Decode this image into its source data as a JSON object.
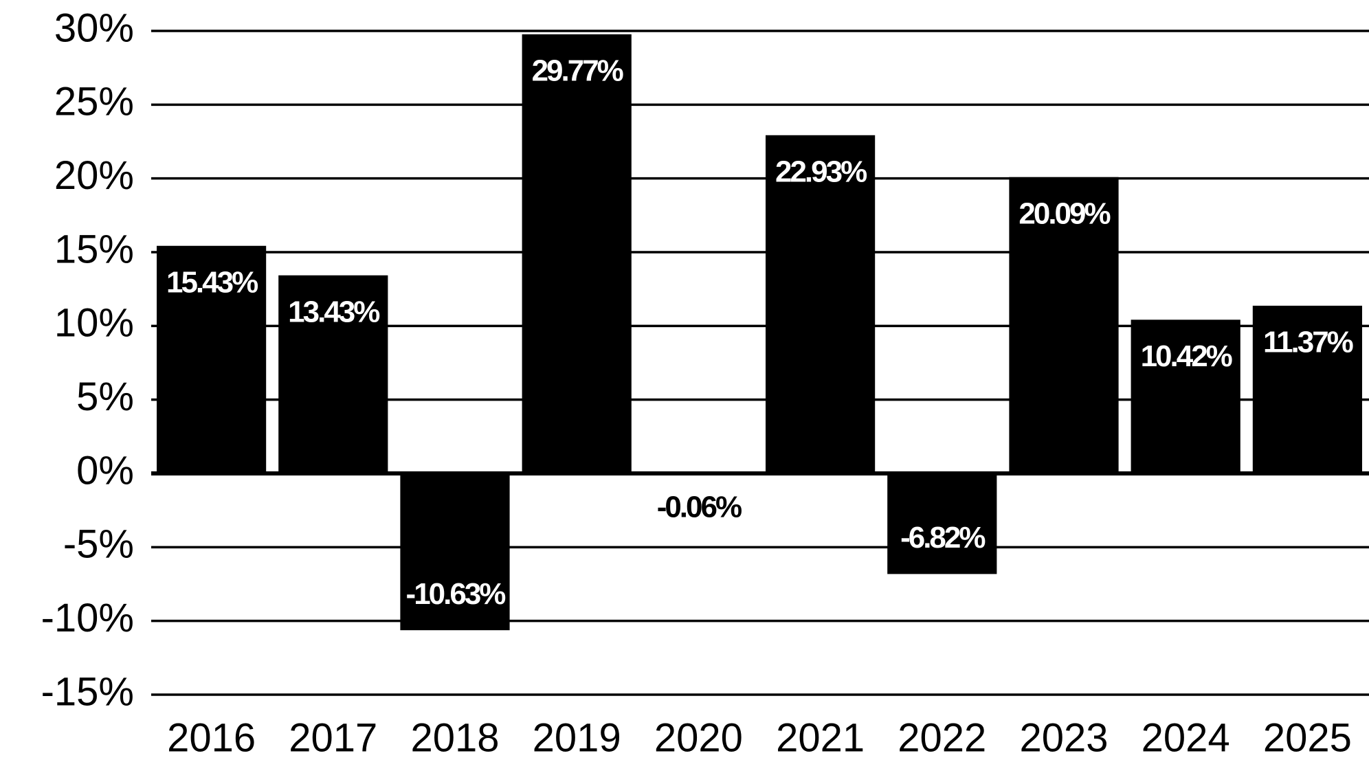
{
  "chart_data": {
    "type": "bar",
    "categories": [
      "2016",
      "2017",
      "2018",
      "2019",
      "2020",
      "2021",
      "2022",
      "2023",
      "2024",
      "2025"
    ],
    "values": [
      15.43,
      13.43,
      -10.63,
      29.77,
      -0.06,
      22.93,
      -6.82,
      20.09,
      10.42,
      11.37
    ],
    "value_labels": [
      "15.43%",
      "13.43%",
      "-10.63%",
      "29.77%",
      "-0.06%",
      "22.93%",
      "-6.82%",
      "20.09%",
      "10.42%",
      "11.37%"
    ],
    "color": "#000000",
    "ylim": [
      -15,
      30
    ],
    "yticks": [
      {
        "value": -15,
        "label": "-15%"
      },
      {
        "value": -10,
        "label": "-10%"
      },
      {
        "value": -5,
        "label": "-5%"
      },
      {
        "value": 0,
        "label": "0%"
      },
      {
        "value": 5,
        "label": "5%"
      },
      {
        "value": 10,
        "label": "10%"
      },
      {
        "value": 15,
        "label": "15%"
      },
      {
        "value": 20,
        "label": "20%"
      },
      {
        "value": 25,
        "label": "25%"
      },
      {
        "value": 30,
        "label": "30%"
      }
    ],
    "grid": true
  }
}
